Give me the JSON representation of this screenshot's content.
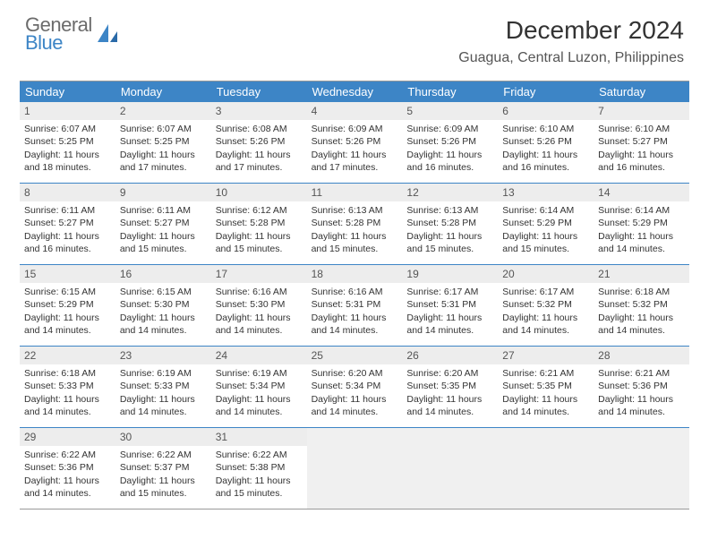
{
  "logo": {
    "line1": "General",
    "line2": "Blue"
  },
  "title": "December 2024",
  "location": "Guagua, Central Luzon, Philippines",
  "colors": {
    "header_bg": "#3d85c6",
    "header_text": "#ffffff",
    "daynum_bg": "#ededed",
    "empty_bg": "#f0f0f0",
    "week_border": "#3d85c6",
    "logo_gray": "#6b6b6b",
    "logo_blue": "#3d85c6"
  },
  "day_names": [
    "Sunday",
    "Monday",
    "Tuesday",
    "Wednesday",
    "Thursday",
    "Friday",
    "Saturday"
  ],
  "weeks": [
    [
      {
        "d": "1",
        "sr": "6:07 AM",
        "ss": "5:25 PM",
        "dl": "11 hours and 18 minutes."
      },
      {
        "d": "2",
        "sr": "6:07 AM",
        "ss": "5:25 PM",
        "dl": "11 hours and 17 minutes."
      },
      {
        "d": "3",
        "sr": "6:08 AM",
        "ss": "5:26 PM",
        "dl": "11 hours and 17 minutes."
      },
      {
        "d": "4",
        "sr": "6:09 AM",
        "ss": "5:26 PM",
        "dl": "11 hours and 17 minutes."
      },
      {
        "d": "5",
        "sr": "6:09 AM",
        "ss": "5:26 PM",
        "dl": "11 hours and 16 minutes."
      },
      {
        "d": "6",
        "sr": "6:10 AM",
        "ss": "5:26 PM",
        "dl": "11 hours and 16 minutes."
      },
      {
        "d": "7",
        "sr": "6:10 AM",
        "ss": "5:27 PM",
        "dl": "11 hours and 16 minutes."
      }
    ],
    [
      {
        "d": "8",
        "sr": "6:11 AM",
        "ss": "5:27 PM",
        "dl": "11 hours and 16 minutes."
      },
      {
        "d": "9",
        "sr": "6:11 AM",
        "ss": "5:27 PM",
        "dl": "11 hours and 15 minutes."
      },
      {
        "d": "10",
        "sr": "6:12 AM",
        "ss": "5:28 PM",
        "dl": "11 hours and 15 minutes."
      },
      {
        "d": "11",
        "sr": "6:13 AM",
        "ss": "5:28 PM",
        "dl": "11 hours and 15 minutes."
      },
      {
        "d": "12",
        "sr": "6:13 AM",
        "ss": "5:28 PM",
        "dl": "11 hours and 15 minutes."
      },
      {
        "d": "13",
        "sr": "6:14 AM",
        "ss": "5:29 PM",
        "dl": "11 hours and 15 minutes."
      },
      {
        "d": "14",
        "sr": "6:14 AM",
        "ss": "5:29 PM",
        "dl": "11 hours and 14 minutes."
      }
    ],
    [
      {
        "d": "15",
        "sr": "6:15 AM",
        "ss": "5:29 PM",
        "dl": "11 hours and 14 minutes."
      },
      {
        "d": "16",
        "sr": "6:15 AM",
        "ss": "5:30 PM",
        "dl": "11 hours and 14 minutes."
      },
      {
        "d": "17",
        "sr": "6:16 AM",
        "ss": "5:30 PM",
        "dl": "11 hours and 14 minutes."
      },
      {
        "d": "18",
        "sr": "6:16 AM",
        "ss": "5:31 PM",
        "dl": "11 hours and 14 minutes."
      },
      {
        "d": "19",
        "sr": "6:17 AM",
        "ss": "5:31 PM",
        "dl": "11 hours and 14 minutes."
      },
      {
        "d": "20",
        "sr": "6:17 AM",
        "ss": "5:32 PM",
        "dl": "11 hours and 14 minutes."
      },
      {
        "d": "21",
        "sr": "6:18 AM",
        "ss": "5:32 PM",
        "dl": "11 hours and 14 minutes."
      }
    ],
    [
      {
        "d": "22",
        "sr": "6:18 AM",
        "ss": "5:33 PM",
        "dl": "11 hours and 14 minutes."
      },
      {
        "d": "23",
        "sr": "6:19 AM",
        "ss": "5:33 PM",
        "dl": "11 hours and 14 minutes."
      },
      {
        "d": "24",
        "sr": "6:19 AM",
        "ss": "5:34 PM",
        "dl": "11 hours and 14 minutes."
      },
      {
        "d": "25",
        "sr": "6:20 AM",
        "ss": "5:34 PM",
        "dl": "11 hours and 14 minutes."
      },
      {
        "d": "26",
        "sr": "6:20 AM",
        "ss": "5:35 PM",
        "dl": "11 hours and 14 minutes."
      },
      {
        "d": "27",
        "sr": "6:21 AM",
        "ss": "5:35 PM",
        "dl": "11 hours and 14 minutes."
      },
      {
        "d": "28",
        "sr": "6:21 AM",
        "ss": "5:36 PM",
        "dl": "11 hours and 14 minutes."
      }
    ],
    [
      {
        "d": "29",
        "sr": "6:22 AM",
        "ss": "5:36 PM",
        "dl": "11 hours and 14 minutes."
      },
      {
        "d": "30",
        "sr": "6:22 AM",
        "ss": "5:37 PM",
        "dl": "11 hours and 15 minutes."
      },
      {
        "d": "31",
        "sr": "6:22 AM",
        "ss": "5:38 PM",
        "dl": "11 hours and 15 minutes."
      },
      null,
      null,
      null,
      null
    ]
  ],
  "labels": {
    "sunrise": "Sunrise:",
    "sunset": "Sunset:",
    "daylight": "Daylight:"
  }
}
